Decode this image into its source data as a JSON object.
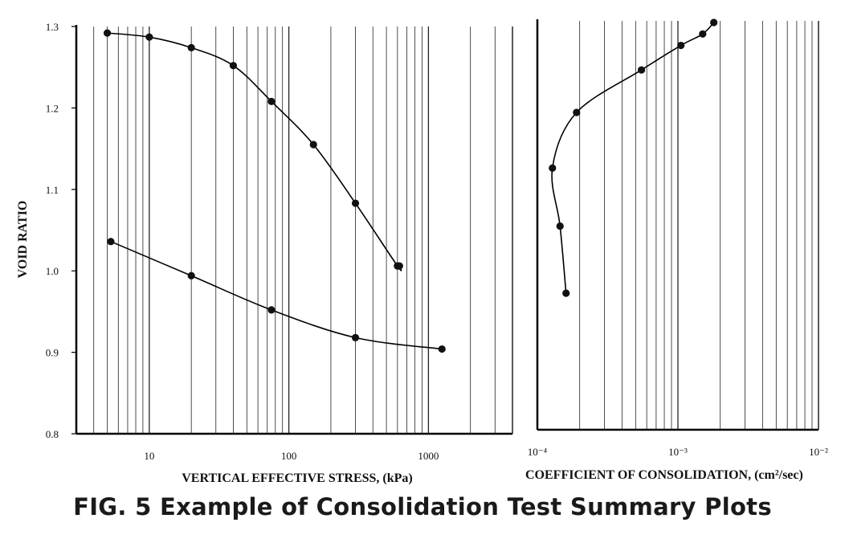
{
  "caption": "FIG. 5 Example of Consolidation Test Summary Plots",
  "chart_data": [
    {
      "type": "line",
      "xscale": "log",
      "xlim": [
        3,
        4000
      ],
      "ylim": [
        0.8,
        1.3
      ],
      "ylabel": "VOID RATIO",
      "xlabel": "VERTICAL EFFECTIVE STRESS, (kPa)",
      "xticks": [
        {
          "value": 10,
          "label": "10"
        },
        {
          "value": 100,
          "label": "100"
        },
        {
          "value": 1000,
          "label": "1000"
        }
      ],
      "yticks": [
        {
          "value": 0.8,
          "label": "0.8"
        },
        {
          "value": 0.9,
          "label": "0.9"
        },
        {
          "value": 1.0,
          "label": "1.0"
        },
        {
          "value": 1.1,
          "label": "1.1"
        },
        {
          "value": 1.2,
          "label": "1.2"
        },
        {
          "value": 1.3,
          "label": "1.3"
        }
      ],
      "grid": true,
      "series": [
        {
          "x": [
            5,
            10,
            20,
            40,
            75,
            150,
            300,
            600,
            620
          ],
          "y": [
            1.292,
            1.287,
            1.274,
            1.252,
            1.208,
            1.155,
            1.083,
            1.006,
            1.006
          ]
        },
        {
          "x": [
            1250,
            300,
            75,
            20,
            5.3
          ],
          "y": [
            0.904,
            0.918,
            0.952,
            0.994,
            1.036
          ]
        }
      ]
    },
    {
      "type": "line",
      "xscale": "log",
      "xlim": [
        0.0001,
        0.01
      ],
      "ylim": [
        0.8,
        1.3
      ],
      "xlabel": "COEFFICIENT OF CONSOLIDATION, (cm²/sec)",
      "xticks": [
        {
          "value": 0.0001,
          "label": "10⁻⁴"
        },
        {
          "value": 0.001,
          "label": "10⁻³"
        },
        {
          "value": 0.01,
          "label": "10⁻²"
        }
      ],
      "grid": true,
      "series": [
        {
          "x": [
            0.00016,
            0.000145,
            0.000128,
            0.00019,
            0.00055,
            0.00105,
            0.0015,
            0.0018
          ],
          "y": [
            0.967,
            1.049,
            1.12,
            1.188,
            1.24,
            1.27,
            1.284,
            1.298
          ]
        }
      ]
    }
  ]
}
